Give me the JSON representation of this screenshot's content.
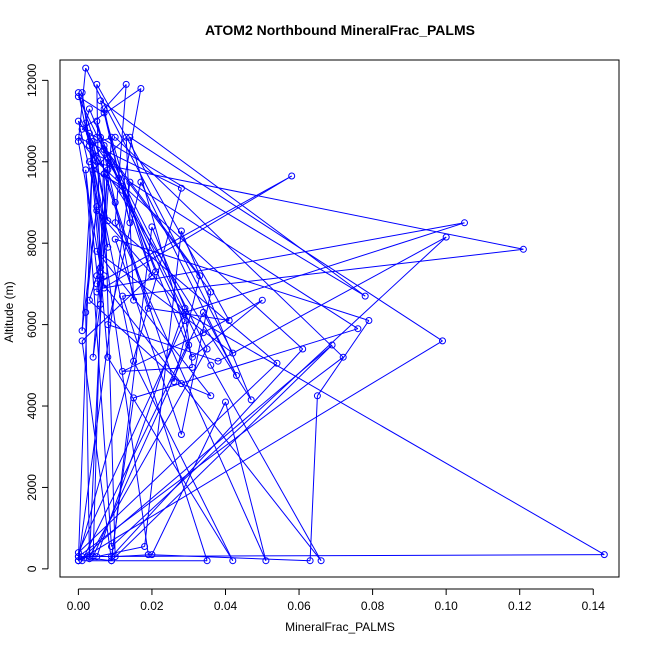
{
  "chart_data": {
    "type": "scatter",
    "title": "ATOM2 Northbound MineralFrac_PALMS",
    "xlabel": "MineralFrac_PALMS",
    "ylabel": "Altitude (m)",
    "xlim": [
      -0.005,
      0.147
    ],
    "ylim": [
      -200,
      12500
    ],
    "x_ticks": [
      0.0,
      0.02,
      0.04,
      0.06,
      0.08,
      0.1,
      0.12,
      0.14
    ],
    "x_tick_labels": [
      "0.00",
      "0.02",
      "0.04",
      "0.06",
      "0.08",
      "0.10",
      "0.12",
      "0.14"
    ],
    "y_ticks": [
      0,
      2000,
      4000,
      6000,
      8000,
      10000,
      12000
    ],
    "y_tick_labels": [
      "0",
      "2000",
      "4000",
      "6000",
      "8000",
      "10000",
      "12000"
    ],
    "grid": false,
    "legend": "none",
    "series": [
      {
        "color": "#0000ff",
        "markers": "open-circle",
        "connected": true,
        "points": [
          [
            0.0,
            200
          ],
          [
            0.001,
            300
          ],
          [
            0.003,
            250
          ],
          [
            0.008,
            10100
          ],
          [
            0.005,
            11000
          ],
          [
            0.01,
            9000
          ],
          [
            0.015,
            6600
          ],
          [
            0.013,
            10600
          ],
          [
            0.004,
            9800
          ],
          [
            0.012,
            9400
          ],
          [
            0.021,
            7300
          ],
          [
            0.001,
            5600
          ],
          [
            0.009,
            200
          ],
          [
            0.02,
            8400
          ],
          [
            0.029,
            6400
          ],
          [
            0.005,
            300
          ],
          [
            0.018,
            550
          ],
          [
            0.028,
            8300
          ],
          [
            0.047,
            4150
          ],
          [
            0.003,
            10400
          ],
          [
            0.009,
            10600
          ],
          [
            0.006,
            6500
          ],
          [
            0.005,
            11900
          ],
          [
            0.041,
            6100
          ],
          [
            0.019,
            6400
          ],
          [
            0.007,
            9700
          ],
          [
            0.01,
            300
          ],
          [
            0.02,
            350
          ],
          [
            0.04,
            4100
          ],
          [
            0.051,
            200
          ],
          [
            0.01,
            8500
          ],
          [
            0.013,
            11900
          ],
          [
            0.007,
            11300
          ],
          [
            0.014,
            8500
          ],
          [
            0.007,
            11200
          ],
          [
            0.0,
            11600
          ],
          [
            0.029,
            6100
          ],
          [
            0.0,
            400
          ],
          [
            0.054,
            5050
          ],
          [
            0.005,
            8800
          ],
          [
            0.029,
            6300
          ],
          [
            0.031,
            4950
          ],
          [
            0.012,
            4850
          ],
          [
            0.034,
            5800
          ],
          [
            0.05,
            6600
          ],
          [
            0.031,
            5200
          ],
          [
            0.003,
            11300
          ],
          [
            0.002,
            10950
          ],
          [
            0.008,
            7900
          ],
          [
            0.0,
            11000
          ],
          [
            0.011,
            9600
          ],
          [
            0.02,
            7200
          ],
          [
            0.006,
            11500
          ],
          [
            0.078,
            6700
          ],
          [
            0.006,
            10600
          ],
          [
            0.035,
            5400
          ],
          [
            0.003,
            300
          ],
          [
            0.002,
            6300
          ],
          [
            0.005,
            8900
          ],
          [
            0.001,
            5850
          ],
          [
            0.004,
            10200
          ],
          [
            0.009,
            10000
          ],
          [
            0.007,
            9700
          ],
          [
            0.012,
            9300
          ],
          [
            0.017,
            11800
          ],
          [
            0.001,
            10800
          ],
          [
            0.005,
            10600
          ],
          [
            0.033,
            7200
          ],
          [
            0.026,
            4600
          ],
          [
            0.0,
            11700
          ],
          [
            0.015,
            5100
          ],
          [
            0.042,
            200
          ],
          [
            0.008,
            5200
          ],
          [
            0.003,
            10500
          ],
          [
            0.001,
            11700
          ],
          [
            0.019,
            350
          ],
          [
            0.063,
            200
          ],
          [
            0.065,
            4250
          ],
          [
            0.079,
            6100
          ],
          [
            0.01,
            8100
          ],
          [
            0.028,
            3300
          ],
          [
            0.036,
            6800
          ],
          [
            0.007,
            10300
          ],
          [
            0.036,
            5000
          ],
          [
            0.066,
            200
          ],
          [
            0.005,
            7200
          ],
          [
            0.003,
            6600
          ],
          [
            0.028,
            4550
          ],
          [
            0.036,
            4250
          ],
          [
            0.005,
            7800
          ],
          [
            0.042,
            5300
          ],
          [
            0.002,
            12300
          ],
          [
            0.0,
            10500
          ],
          [
            0.006,
            7400
          ],
          [
            0.004,
            5200
          ],
          [
            0.007,
            7200
          ],
          [
            0.005,
            7000
          ],
          [
            0.058,
            9650
          ],
          [
            0.005,
            6800
          ],
          [
            0.008,
            9800
          ],
          [
            0.006,
            7300
          ],
          [
            0.007,
            10400
          ],
          [
            0.003,
            10000
          ],
          [
            0.121,
            7850
          ],
          [
            0.012,
            6700
          ],
          [
            0.035,
            200
          ],
          [
            0.001,
            200
          ],
          [
            0.034,
            6300
          ],
          [
            0.043,
            4750
          ],
          [
            0.017,
            9500
          ],
          [
            0.008,
            6000
          ],
          [
            0.038,
            5100
          ],
          [
            0.1,
            8150
          ],
          [
            0.009,
            550
          ],
          [
            0.002,
            9800
          ],
          [
            0.006,
            6500
          ],
          [
            0.004,
            300
          ],
          [
            0.03,
            5500
          ],
          [
            0.014,
            10600
          ],
          [
            0.099,
            5600
          ],
          [
            0.0,
            200
          ],
          [
            0.014,
            9500
          ],
          [
            0.076,
            5900
          ],
          [
            0.015,
            4200
          ],
          [
            0.009,
            300
          ],
          [
            0.061,
            5400
          ],
          [
            0.005,
            10000
          ],
          [
            0.0,
            10600
          ],
          [
            0.028,
            9350
          ],
          [
            0.0,
            300
          ],
          [
            0.143,
            350
          ],
          [
            0.029,
            6300
          ],
          [
            0.105,
            8500
          ],
          [
            0.007,
            6900
          ],
          [
            0.003,
            10700
          ],
          [
            0.008,
            8550
          ],
          [
            0.004,
            10500
          ],
          [
            0.0,
            200
          ],
          [
            0.069,
            5500
          ],
          [
            0.009,
            200
          ],
          [
            0.0,
            300
          ],
          [
            0.072,
            5200
          ],
          [
            0.01,
            10600
          ]
        ]
      }
    ]
  }
}
